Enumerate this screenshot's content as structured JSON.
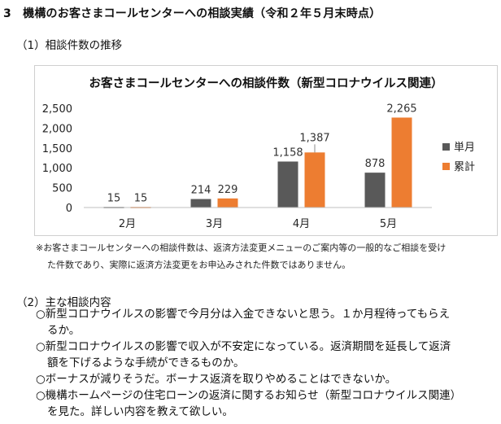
{
  "heading": "3　機構のお客さまコールセンターへの相談実績（令和２年５月末時点）",
  "section1": {
    "title": "（1）相談件数の推移"
  },
  "chart_data": {
    "type": "bar",
    "title": "お客さまコールセンターへの相談件数（新型コロナウイルス関連）",
    "categories": [
      "2月",
      "3月",
      "4月",
      "5月"
    ],
    "series": [
      {
        "name": "単月",
        "values": [
          15,
          214,
          1158,
          878
        ],
        "color": "#595959",
        "labels": [
          "15",
          "214",
          "1,158",
          "878"
        ]
      },
      {
        "name": "累計",
        "values": [
          15,
          229,
          1387,
          2265
        ],
        "color": "#ed7d31",
        "labels": [
          "15",
          "229",
          "1,387",
          "2,265"
        ]
      }
    ],
    "ylim": [
      0,
      2500
    ],
    "yticks": [
      0,
      500,
      1000,
      1500,
      2000,
      2500
    ],
    "ytick_labels": [
      "0",
      "500",
      "1,000",
      "1,500",
      "2,000",
      "2,500"
    ],
    "legend_position": "right",
    "grid": false
  },
  "notes": {
    "line1": "※お客さまコールセンターへの相談件数は、返済方法変更メニューのご案内等の一般的なご相談を受け",
    "line2": "た件数であり、実際に返済方法変更をお申込みされた件数ではありません。"
  },
  "section2": {
    "title": "（2）主な相談内容",
    "items": [
      "○新型コロナウイルスの影響で今月分は入金できないと思う。１か月程待ってもらえ",
      "るか。",
      "○新型コロナウイルスの影響で収入が不安定になっている。返済期間を延長して返済",
      "額を下げるような手続ができるものか。",
      "○ボーナスが減りそうだ。ボーナス返済を取りやめることはできないか。",
      "○機構ホームページの住宅ローンの返済に関するお知らせ（新型コロナウイルス関連）",
      "を見た。詳しい内容を教えて欲しい。"
    ]
  }
}
